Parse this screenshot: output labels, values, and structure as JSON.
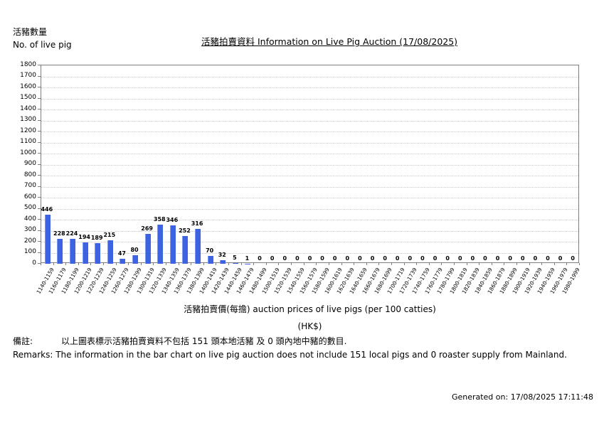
{
  "header": {
    "y_axis_title_zh": "活豬數量",
    "y_axis_title_en": "No. of live pig",
    "title": "活豬拍賣資料 Information on Live Pig Auction (17/08/2025)"
  },
  "footer": {
    "x_axis_title": "活豬拍賣價(每擔) auction prices of live pigs (per 100 catties)",
    "x_axis_unit": "(HK$)",
    "remarks_zh_label": "備註:",
    "remarks_zh_text": "以上圖表標示活豬拍賣資料不包括 151 頭本地活豬 及 0 頭內地中豬的數目.",
    "remarks_en": "Remarks: The information in the bar chart on live pig auction does not include 151 local pigs and 0 roaster supply from Mainland.",
    "generated": "Generated on: 17/08/2025 17:11:48"
  },
  "chart_data": {
    "type": "bar",
    "title": "活豬拍賣資料 Information on Live Pig Auction (17/08/2025)",
    "xlabel": "活豬拍賣價(每擔) auction prices of live pigs (per 100 catties) (HK$)",
    "ylabel": "活豬數量 No. of live pig",
    "ylim": [
      0,
      1800
    ],
    "ytick_step": 100,
    "grid": true,
    "legend_position": "none",
    "bar_color": "#3d63e2",
    "categories": [
      "1140-1159",
      "1160-1179",
      "1180-1199",
      "1200-1219",
      "1220-1239",
      "1240-1259",
      "1260-1279",
      "1280-1299",
      "1300-1319",
      "1320-1339",
      "1340-1359",
      "1360-1379",
      "1380-1399",
      "1400-1419",
      "1420-1439",
      "1440-1459",
      "1460-1479",
      "1480-1499",
      "1500-1519",
      "1520-1539",
      "1540-1559",
      "1560-1579",
      "1580-1599",
      "1600-1619",
      "1620-1639",
      "1640-1659",
      "1660-1679",
      "1680-1699",
      "1700-1719",
      "1720-1739",
      "1740-1759",
      "1760-1779",
      "1780-1799",
      "1800-1819",
      "1820-1839",
      "1840-1859",
      "1860-1879",
      "1880-1899",
      "1900-1919",
      "1920-1939",
      "1940-1959",
      "1960-1979",
      "1980-1999"
    ],
    "values": [
      446,
      228,
      224,
      194,
      189,
      215,
      47,
      80,
      269,
      358,
      346,
      252,
      316,
      70,
      32,
      5,
      1,
      0,
      0,
      0,
      0,
      0,
      0,
      0,
      0,
      0,
      0,
      0,
      0,
      0,
      0,
      0,
      0,
      0,
      0,
      0,
      0,
      0,
      0,
      0,
      0,
      0,
      0
    ]
  }
}
